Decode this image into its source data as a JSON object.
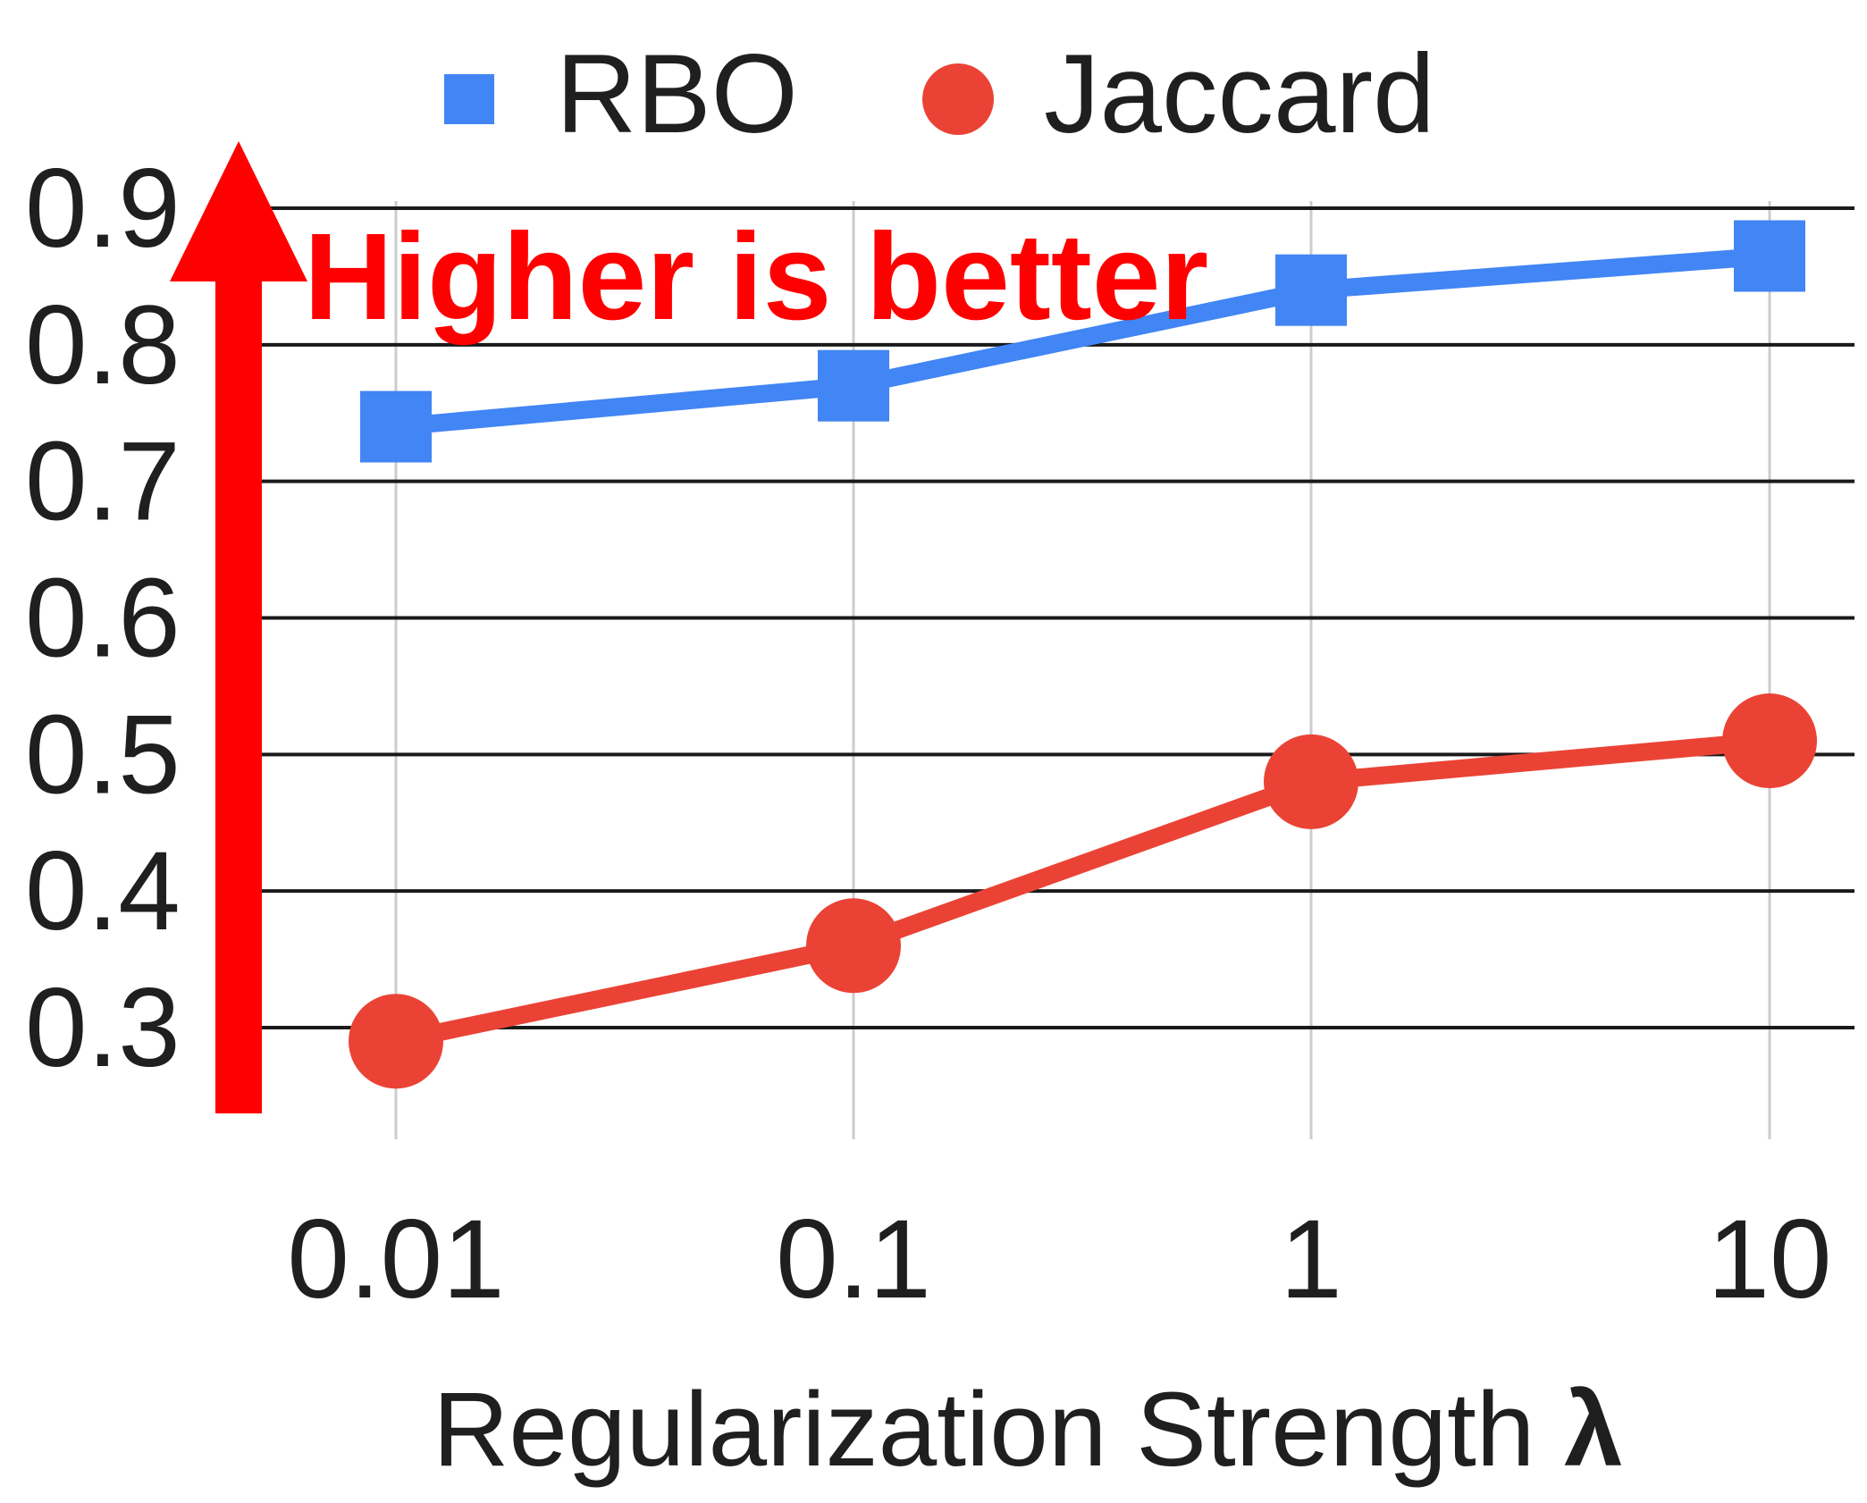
{
  "chart_data": {
    "type": "line",
    "categories": [
      "0.01",
      "0.1",
      "1",
      "10"
    ],
    "series": [
      {
        "name": "RBO",
        "values": [
          0.74,
          0.77,
          0.84,
          0.865
        ],
        "color": "#4285f4",
        "marker": "square"
      },
      {
        "name": "Jaccard",
        "values": [
          0.29,
          0.36,
          0.48,
          0.51
        ],
        "color": "#ea4335",
        "marker": "circle"
      }
    ],
    "y_ticks": [
      "0.3",
      "0.4",
      "0.5",
      "0.6",
      "0.7",
      "0.8",
      "0.9"
    ],
    "ylim": [
      0.3,
      0.9
    ],
    "xlabel_text": "Regularization Strength ",
    "xlabel_symbol": "λ",
    "ylabel": "",
    "title": "",
    "grid": true,
    "legend_position": "top-center",
    "annotation": {
      "text": "Higher is better",
      "color": "#ff0000"
    }
  }
}
